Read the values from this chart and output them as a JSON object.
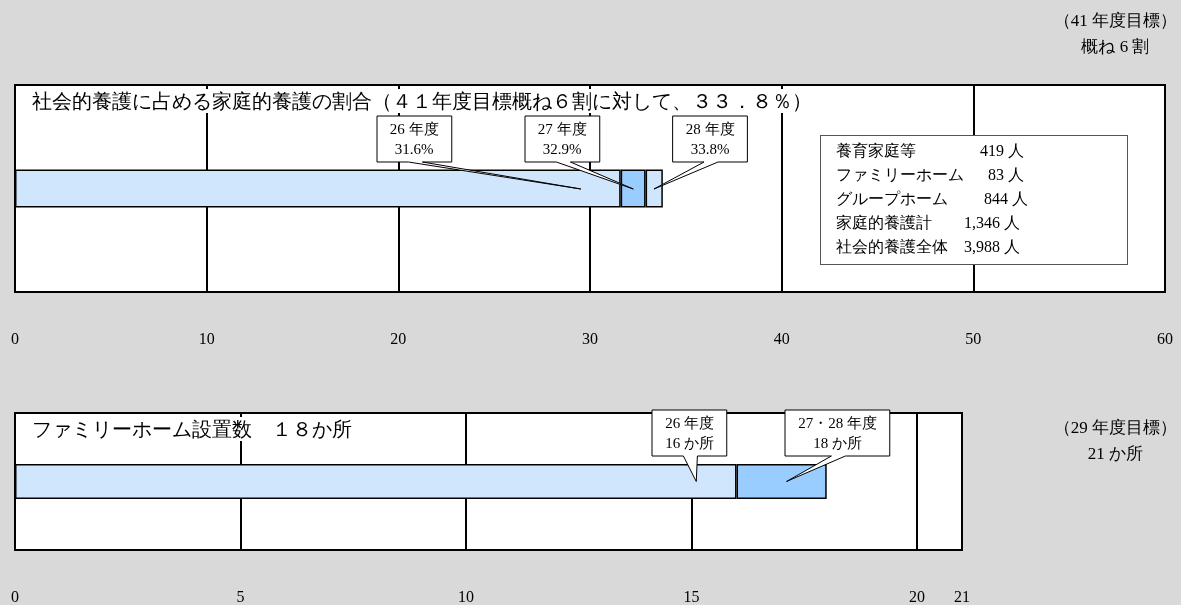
{
  "chart_data": [
    {
      "type": "bar",
      "orientation": "horizontal",
      "stacked": true,
      "title": "社会的養護に占める家庭的養護の割合（４１年度目標概ね６割に対して、３３．８％）",
      "categories": [
        null
      ],
      "series": [
        {
          "color": "#cfe6fd",
          "values": [
            31.6
          ]
        },
        {
          "color": "#99ccff",
          "values": [
            1.3
          ]
        },
        {
          "color": "#cfe6fd",
          "values": [
            0.9
          ]
        }
      ],
      "xlim": [
        0,
        60
      ],
      "xticks": [
        0,
        10,
        20,
        30,
        40,
        50,
        60
      ],
      "grid": "x",
      "tick_labels": "x",
      "annotations": [
        "26 年度 31.6%",
        "27 年度 32.9%",
        "28 年度 33.8%",
        "（41 年度目標）",
        "概ね 6 割",
        "養育家庭等　　　　419 人",
        "ファミリーホーム　  83 人",
        "グループホーム　　 844 人",
        "家庭的養護計　　1,346 人",
        "社会的養護全体　3,988 人"
      ]
    },
    {
      "type": "bar",
      "orientation": "horizontal",
      "stacked": true,
      "title": "ファミリーホーム設置数　１８か所",
      "categories": [
        null
      ],
      "series": [
        {
          "color": "#cfe6fd",
          "values": [
            16
          ]
        },
        {
          "color": "#99ccff",
          "values": [
            2
          ]
        }
      ],
      "xlim": [
        0,
        21
      ],
      "xticks": [
        0,
        5,
        10,
        15,
        20,
        21
      ],
      "grid": "x",
      "tick_labels": "x",
      "annotations": [
        "26 年度 16 か所",
        "27・28 年度 18 か所",
        "（29 年度目標）",
        "21 か所"
      ]
    }
  ]
}
